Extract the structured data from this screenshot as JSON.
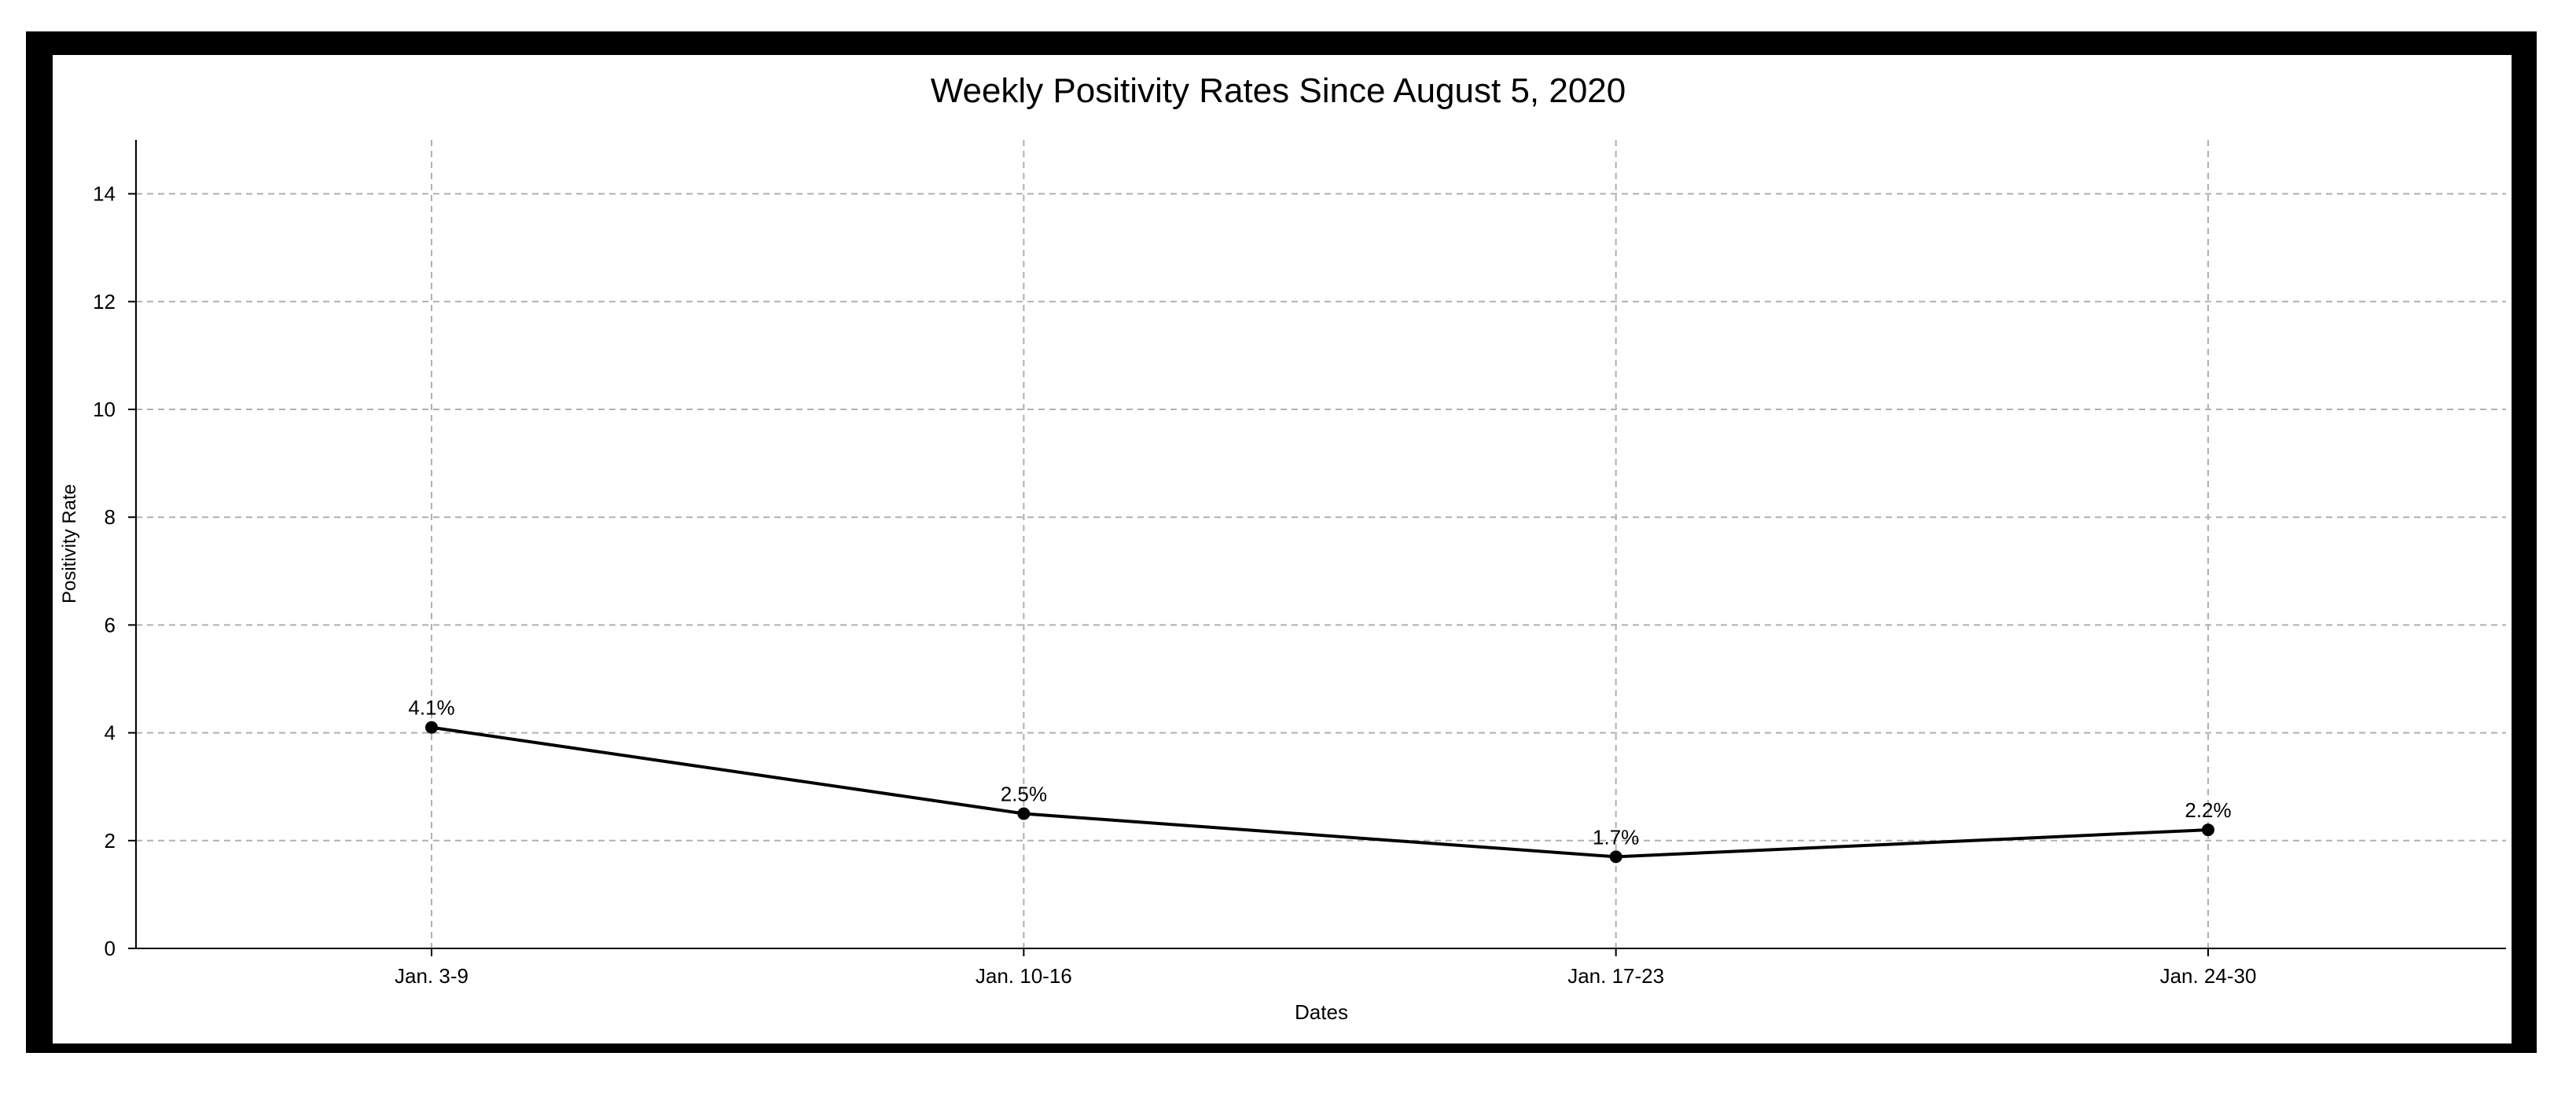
{
  "chart_data": {
    "type": "line",
    "title": "Weekly Positivity Rates Since August 5, 2020",
    "xlabel": "Dates",
    "ylabel": "Positivity Rate",
    "categories": [
      "Jan. 3-9",
      "Jan. 10-16",
      "Jan. 17-23",
      "Jan. 24-30"
    ],
    "series": [
      {
        "values": [
          4.1,
          2.5,
          1.7,
          2.2
        ],
        "labels": [
          "4.1%",
          "2.5%",
          "1.7%",
          "2.2%"
        ],
        "color": "#000000"
      }
    ],
    "yticks": [
      0,
      2,
      4,
      6,
      8,
      10,
      12,
      14
    ],
    "ylim": [
      0,
      15
    ],
    "grid": true,
    "legend": "none"
  }
}
